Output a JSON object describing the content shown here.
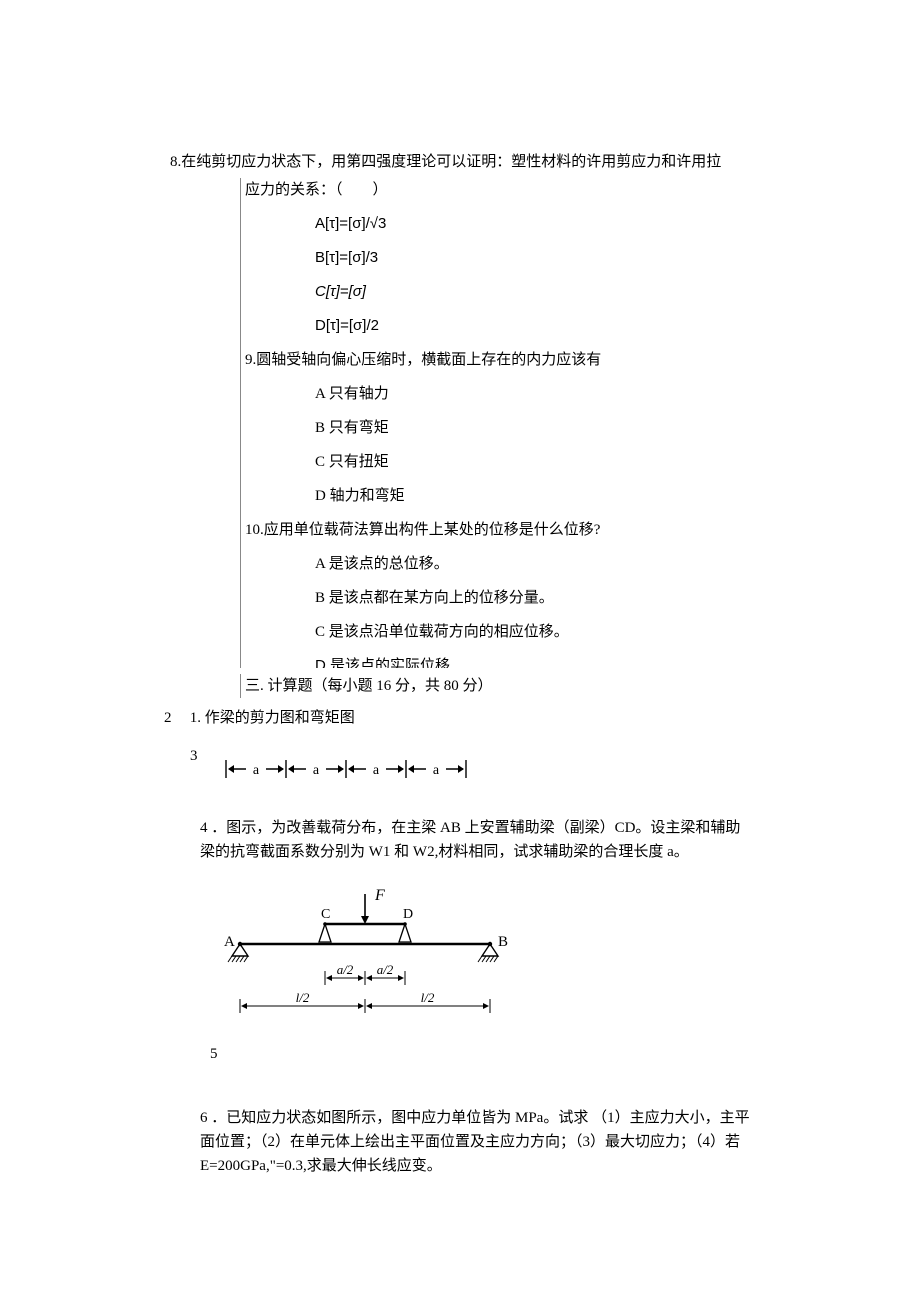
{
  "q8": {
    "stem": "8.在纯剪切应力状态下，用第四强度理论可以证明：塑性材料的许用剪应力和许用拉",
    "stem2": "应力的关系：（　　）",
    "optA": "A[τ]=[σ]/√3",
    "optB": "B[τ]=[σ]/3",
    "optC": "C[τ]=[σ]",
    "optD": "D[τ]=[σ]/2"
  },
  "q9": {
    "stem": "9.圆轴受轴向偏心压缩时，横截面上存在的内力应该有",
    "optA": "A 只有轴力",
    "optB": "B 只有弯矩",
    "optC": "C 只有扭矩",
    "optD": "D 轴力和弯矩"
  },
  "q10": {
    "stem": "10.应用单位载荷法算出构件上某处的位移是什么位移?",
    "optA": "A 是该点的总位移。",
    "optB": "B 是该点都在某方向上的位移分量。",
    "optC": "C 是该点沿单位载荷方向的相应位移。",
    "optD": "D 是该点的实际位移"
  },
  "section3": "三. 计算题（每小题 16 分，共 80 分）",
  "q21": {
    "num": "2",
    "text": "1. 作梁的剪力图和弯矩图"
  },
  "dim": {
    "num": "3",
    "label": "a",
    "aw": 60,
    "segments": 4
  },
  "q4": {
    "num": "4",
    "text": "．图示，为改善载荷分布，在主梁 AB 上安置辅助梁（副梁）CD。设主梁和辅助梁的抗弯截面系数分别为 W1 和 W2,材料相同，试求辅助梁的合理长度 a。"
  },
  "beam": {
    "num": "5",
    "F": "F",
    "A": "A",
    "B": "B",
    "C": "C",
    "D": "D",
    "a2": "a/2",
    "l2": "l/2"
  },
  "q6": {
    "num": "6",
    "text": "．已知应力状态如图所示，图中应力单位皆为 MPa。试求 （1）主应力大小，主平面位置；（2）在单元体上绘出主平面位置及主应力方向；（3）最大切应力；（4）若 E=200GPa,\"=0.3,求最大伸长线应变。"
  }
}
